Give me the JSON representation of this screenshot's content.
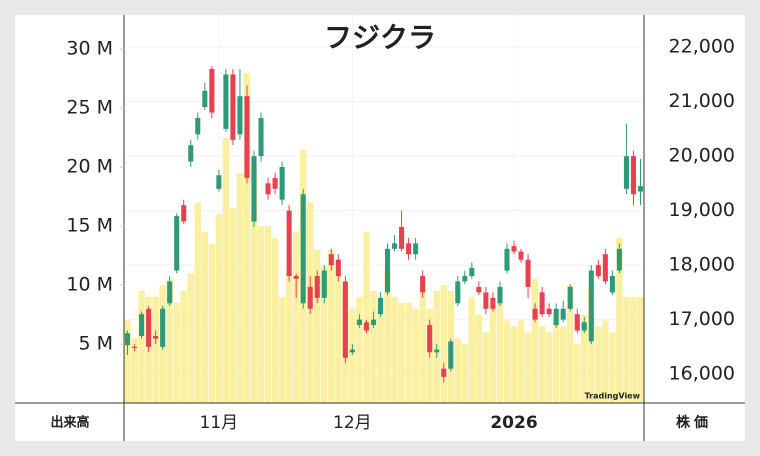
{
  "chart_data": {
    "type": "candlestick",
    "title": "フジクラ",
    "watermark": "TradingView",
    "volume_axis_label": "出来高",
    "price_axis_label": "株価",
    "categories": [
      null,
      null,
      null,
      null,
      null,
      null,
      null,
      null,
      null,
      null,
      null,
      null,
      null,
      "11月",
      null,
      null,
      null,
      null,
      null,
      null,
      null,
      null,
      null,
      null,
      null,
      null,
      null,
      null,
      null,
      null,
      null,
      null,
      "12月",
      null,
      null,
      null,
      null,
      null,
      null,
      null,
      null,
      null,
      null,
      null,
      null,
      null,
      null,
      null,
      null,
      null,
      null,
      null,
      null,
      null,
      null,
      "2026",
      null,
      null,
      null,
      null,
      null,
      null,
      null,
      null,
      null,
      null,
      null,
      null,
      null,
      null,
      null,
      null,
      null,
      null
    ],
    "open": [
      16530,
      16500,
      16700,
      17200,
      16700,
      16500,
      17300,
      17900,
      19100,
      19900,
      20400,
      20900,
      21600,
      19400,
      20500,
      21500,
      20400,
      21100,
      18800,
      20000,
      19500,
      19600,
      19200,
      19000,
      17800,
      17300,
      17600,
      17800,
      17400,
      18200,
      18100,
      17700,
      16400,
      16900,
      16950,
      16900,
      17100,
      17500,
      18300,
      18700,
      18400,
      18200,
      17800,
      16900,
      16400,
      16100,
      16100,
      17300,
      17700,
      17800,
      17600,
      17500,
      17400,
      17300,
      17900,
      18350,
      18250,
      18100,
      17200,
      17500,
      17200,
      16900,
      17000,
      17200,
      17100,
      16800,
      16600,
      18000,
      18200,
      17500,
      17900,
      19400,
      20000,
      19350
    ],
    "high": [
      16800,
      16550,
      17150,
      17250,
      16800,
      17250,
      17800,
      18950,
      19200,
      20300,
      20800,
      21350,
      21650,
      19750,
      21600,
      21600,
      21600,
      21300,
      20100,
      20800,
      19600,
      19700,
      19900,
      19100,
      17850,
      19400,
      17800,
      17900,
      18000,
      18300,
      18200,
      17800,
      16550,
      17100,
      17000,
      17150,
      17500,
      18400,
      18550,
      19000,
      18500,
      18500,
      17900,
      17000,
      16550,
      16200,
      16650,
      17800,
      17900,
      18050,
      17700,
      17600,
      17500,
      17700,
      18400,
      18450,
      18300,
      18200,
      17300,
      17600,
      17300,
      17300,
      17350,
      17650,
      17200,
      17050,
      18000,
      18100,
      18300,
      17900,
      18400,
      20600,
      20100,
      19950
    ],
    "low": [
      16350,
      16420,
      16650,
      16400,
      16550,
      16450,
      17250,
      17850,
      18750,
      19800,
      20300,
      20850,
      20700,
      19350,
      20450,
      20200,
      20300,
      19500,
      18700,
      19900,
      19200,
      19300,
      19100,
      17700,
      17400,
      17200,
      17100,
      17300,
      17300,
      17900,
      17700,
      16200,
      16350,
      16850,
      16750,
      16850,
      17050,
      17450,
      18250,
      18250,
      18100,
      18100,
      17400,
      16300,
      16300,
      15850,
      16050,
      17250,
      17650,
      17750,
      17450,
      17100,
      17150,
      17250,
      17850,
      18200,
      18050,
      17400,
      16950,
      17050,
      17050,
      16850,
      16950,
      17150,
      16750,
      16750,
      16550,
      17750,
      17650,
      17450,
      17850,
      19300,
      19100,
      19100
    ],
    "close": [
      16750,
      16480,
      17100,
      16500,
      16650,
      17200,
      17700,
      18900,
      18800,
      20200,
      20700,
      21200,
      20800,
      19650,
      21500,
      20300,
      21100,
      19600,
      20000,
      20700,
      19300,
      19400,
      19800,
      17800,
      17750,
      19300,
      17200,
      17400,
      17900,
      18000,
      17800,
      16300,
      16450,
      17000,
      16800,
      17000,
      17400,
      18300,
      18400,
      18300,
      18200,
      18400,
      17500,
      16400,
      16450,
      15950,
      16600,
      17700,
      17800,
      17950,
      17500,
      17200,
      17200,
      17600,
      18300,
      18250,
      18100,
      17600,
      17000,
      17100,
      17100,
      17200,
      17200,
      17600,
      16800,
      16950,
      17900,
      17800,
      17700,
      17800,
      18300,
      20000,
      19300,
      19450
    ],
    "volume": [
      7000000,
      5500000,
      9500000,
      9000000,
      9000000,
      10000000,
      10500000,
      8500000,
      9500000,
      11000000,
      17000000,
      14500000,
      13500000,
      16000000,
      22500000,
      16500000,
      19500000,
      28000000,
      20000000,
      15000000,
      15000000,
      14000000,
      9000000,
      11000000,
      14500000,
      21500000,
      17000000,
      13000000,
      11500000,
      13000000,
      11000000,
      9500000,
      8000000,
      9000000,
      14500000,
      9500000,
      8500000,
      11000000,
      9000000,
      8500000,
      8500000,
      8000000,
      10000000,
      8000000,
      9500000,
      10000000,
      9500000,
      5500000,
      5000000,
      9000000,
      7500000,
      6000000,
      8000000,
      8500000,
      7000000,
      6500000,
      7000000,
      6000000,
      10500000,
      6500000,
      6000000,
      7500000,
      6500000,
      10000000,
      5000000,
      7500000,
      9500000,
      6500000,
      7000000,
      6000000,
      14000000,
      9000000,
      9000000,
      9000000
    ],
    "up_color": "#2f9a7a",
    "down_color": "#e5414f",
    "volume_color": "#fbf0a2",
    "ylim": [
      0,
      32900000
    ],
    "yticks": [
      {
        "value": 5000000,
        "label": "5 M"
      },
      {
        "value": 10000000,
        "label": "10 M"
      },
      {
        "value": 15000000,
        "label": "15 M"
      },
      {
        "value": 20000000,
        "label": "20 M"
      },
      {
        "value": 25000000,
        "label": "25 M"
      },
      {
        "value": 30000000,
        "label": "30 M"
      }
    ],
    "y2lim": [
      15470,
      22590
    ],
    "y2ticks": [
      {
        "value": 16000,
        "label": "16,000"
      },
      {
        "value": 17000,
        "label": "17,000"
      },
      {
        "value": 18000,
        "label": "18,000"
      },
      {
        "value": 19000,
        "label": "19,000"
      },
      {
        "value": 20000,
        "label": "20,000"
      },
      {
        "value": 21000,
        "label": "21,000"
      },
      {
        "value": 22000,
        "label": "22,000"
      }
    ],
    "grid": true
  }
}
